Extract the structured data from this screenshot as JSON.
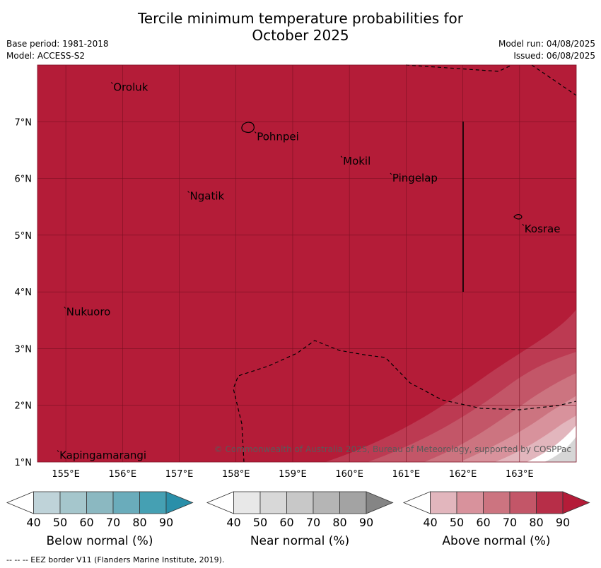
{
  "title_line1": "Tercile minimum temperature probabilities for",
  "title_line2": "October 2025",
  "meta_left": {
    "base_period": "Base period: 1981-2018",
    "model": "Model: ACCESS-S2"
  },
  "meta_right": {
    "model_run": "Model run: 04/08/2025",
    "issued": "Issued: 06/08/2025"
  },
  "map": {
    "lon_range": [
      154.5,
      164.0
    ],
    "lat_range": [
      1.0,
      8.0
    ],
    "lon_ticks": [
      "155°E",
      "156°E",
      "157°E",
      "158°E",
      "159°E",
      "160°E",
      "161°E",
      "162°E",
      "163°E"
    ],
    "lat_ticks": [
      "7°N",
      "6°N",
      "5°N",
      "4°N",
      "3°N",
      "2°N",
      "1°N"
    ],
    "fill_color": "#b41c38",
    "places": [
      {
        "name": "Oroluk",
        "lon": 155.8,
        "lat": 7.62
      },
      {
        "name": "Pohnpei",
        "lon": 158.33,
        "lat": 6.75
      },
      {
        "name": "Mokil",
        "lon": 159.85,
        "lat": 6.32
      },
      {
        "name": "Pingelap",
        "lon": 160.72,
        "lat": 6.02
      },
      {
        "name": "Ngatik",
        "lon": 157.15,
        "lat": 5.7
      },
      {
        "name": "Kosrae",
        "lon": 163.05,
        "lat": 5.12
      },
      {
        "name": "Nukuoro",
        "lon": 154.97,
        "lat": 3.66
      },
      {
        "name": "Kapingamarangi",
        "lon": 154.85,
        "lat": 1.13
      }
    ],
    "copyright": "© Commonwealth of Australia 2025, Bureau of Meteorology, supported by COSPPac"
  },
  "colorbars": [
    {
      "label": "Below normal (%)",
      "colors": [
        "#bfd3d9",
        "#a5c6cc",
        "#8bb8c1",
        "#6aacbb",
        "#45a0b3",
        "#2a8fa9"
      ]
    },
    {
      "label": "Near normal (%)",
      "colors": [
        "#e8e8e8",
        "#d8d8d8",
        "#c8c8c8",
        "#b5b5b5",
        "#a3a3a3",
        "#858585"
      ]
    },
    {
      "label": "Above normal (%)",
      "colors": [
        "#e2b6bd",
        "#d8929c",
        "#cc7480",
        "#c35668",
        "#b72e48",
        "#b41c38"
      ]
    }
  ],
  "colorbar_ticks": [
    "40",
    "50",
    "60",
    "70",
    "80",
    "90"
  ],
  "footer": "--  --  -- EEZ border V11 (Flanders Marine Institute, 2019)."
}
